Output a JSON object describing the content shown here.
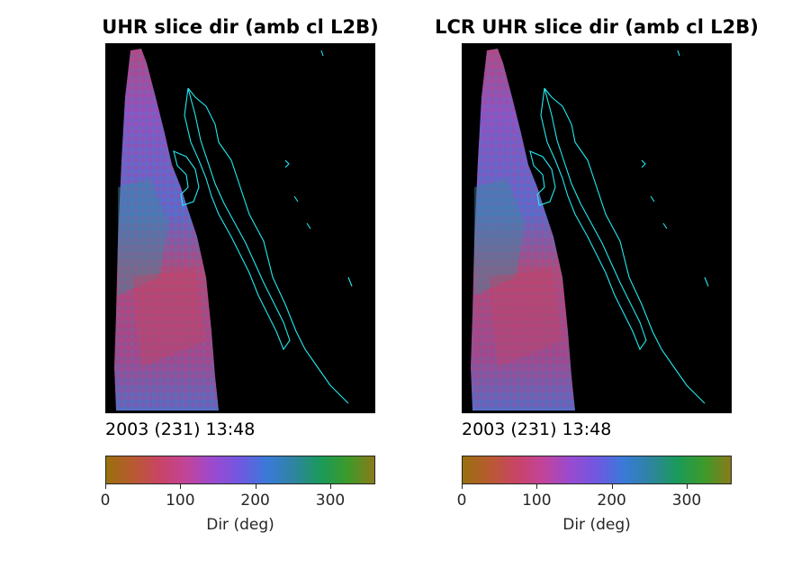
{
  "colorbar_colors": [
    "#98700e",
    "#b85a30",
    "#c84466",
    "#c2449a",
    "#9a4ad0",
    "#7058e0",
    "#3a7ad8",
    "#2e84a0",
    "#1a9a5a",
    "#3c9a2a",
    "#8a7a1a"
  ],
  "panels": [
    {
      "title": "UHR slice dir (amb cl L2B)",
      "timestamp": "2003 (231) 13:48",
      "colorbar": {
        "ticks": [
          "0",
          "100",
          "200",
          "300"
        ],
        "tick_values": [
          0,
          100,
          200,
          300
        ],
        "range": [
          0,
          360
        ],
        "label": "Dir (deg)"
      }
    },
    {
      "title": "LCR UHR slice dir (amb cl L2B)",
      "timestamp": "2003 (231) 13:48",
      "colorbar": {
        "ticks": [
          "0",
          "100",
          "200",
          "300"
        ],
        "tick_values": [
          0,
          100,
          200,
          300
        ],
        "range": [
          0,
          360
        ],
        "label": "Dir (deg)"
      }
    }
  ]
}
